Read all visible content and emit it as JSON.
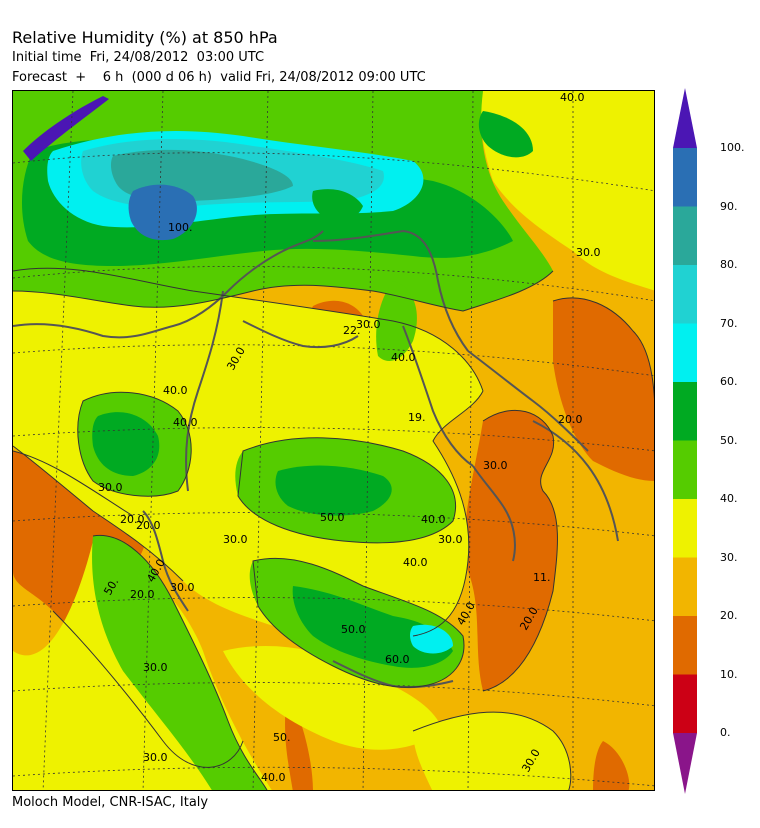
{
  "header": {
    "title": "Relative Humidity (%) at 850 hPa",
    "initial_time": "Initial time  Fri, 24/08/2012  03:00 UTC",
    "forecast": "Forecast  +    6 h  (000 d 06 h)  valid Fri, 24/08/2012 09:00 UTC"
  },
  "footer": {
    "credit": "Moloch Model, CNR-ISAC, Italy"
  },
  "colorbar": {
    "labels": [
      "100.",
      "90.",
      "80.",
      "70.",
      "60.",
      "50.",
      "40.",
      "30.",
      "20.",
      "10.",
      "0."
    ],
    "colors": {
      "above_100": "#4b16b4",
      "90_100": "#2a6fb4",
      "80_90": "#2aa89a",
      "70_80": "#20d2d2",
      "60_70": "#00f0f0",
      "50_60": "#00aa22",
      "40_50": "#55cc00",
      "30_40": "#eef200",
      "20_30": "#f2b500",
      "10_20": "#e06a00",
      "0_10": "#cc0015",
      "below_0": "#8a158a"
    }
  },
  "map": {
    "contour_labels": [
      {
        "text": "40.0"
      },
      {
        "text": "30.0"
      },
      {
        "text": "22."
      },
      {
        "text": "30.0"
      },
      {
        "text": "40.0"
      },
      {
        "text": "30.0"
      },
      {
        "text": "40.0"
      },
      {
        "text": "19."
      },
      {
        "text": "20.0"
      },
      {
        "text": "30.0"
      },
      {
        "text": "50.0"
      },
      {
        "text": "40.0"
      },
      {
        "text": "30.0"
      },
      {
        "text": "20.0"
      },
      {
        "text": "30.0"
      },
      {
        "text": "20.0"
      },
      {
        "text": "50."
      },
      {
        "text": "40.0"
      },
      {
        "text": "30.0"
      },
      {
        "text": "50.0"
      },
      {
        "text": "60.0"
      },
      {
        "text": "40.0"
      },
      {
        "text": "11."
      },
      {
        "text": "20.0"
      },
      {
        "text": "30.0"
      },
      {
        "text": "40.0"
      },
      {
        "text": "30.0"
      },
      {
        "text": "30.0"
      },
      {
        "text": "40.0"
      },
      {
        "text": "30.0"
      },
      {
        "text": "100."
      },
      {
        "text": "40.0"
      },
      {
        "text": "20.0"
      },
      {
        "text": "50."
      }
    ]
  }
}
